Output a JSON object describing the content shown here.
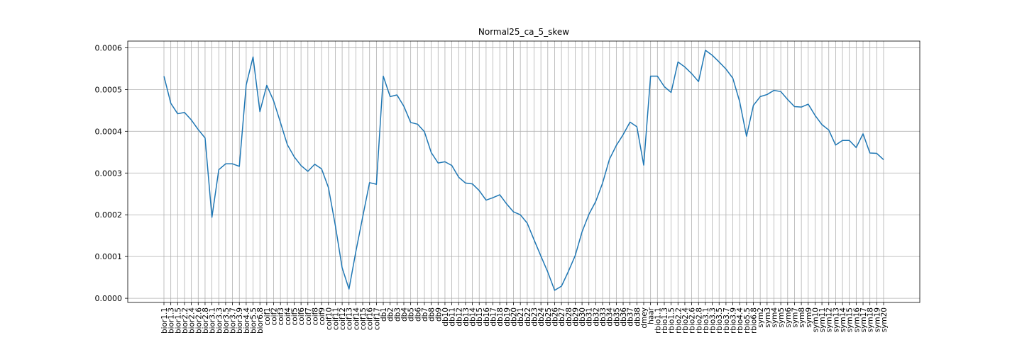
{
  "chart_data": {
    "type": "line",
    "title": "Normal25_ca_5_skew",
    "xlabel": "",
    "ylabel": "",
    "ylim": [
      -1e-05,
      0.000616
    ],
    "yticks": [
      0.0,
      0.0001,
      0.0002,
      0.0003,
      0.0004,
      0.0005,
      0.0006
    ],
    "ytick_labels": [
      "0.0000",
      "0.0001",
      "0.0002",
      "0.0003",
      "0.0004",
      "0.0005",
      "0.0006"
    ],
    "grid": true,
    "line_color": "#1f77b4",
    "categories": [
      "bior1.1",
      "bior1.3",
      "bior1.5",
      "bior2.2",
      "bior2.4",
      "bior2.6",
      "bior2.8",
      "bior3.1",
      "bior3.3",
      "bior3.5",
      "bior3.7",
      "bior3.9",
      "bior4.4",
      "bior5.5",
      "bior6.8",
      "coif1",
      "coif2",
      "coif3",
      "coif4",
      "coif5",
      "coif6",
      "coif7",
      "coif8",
      "coif9",
      "coif10",
      "coif11",
      "coif12",
      "coif13",
      "coif14",
      "coif15",
      "coif16",
      "coif17",
      "db1",
      "db2",
      "db3",
      "db4",
      "db5",
      "db6",
      "db7",
      "db8",
      "db9",
      "db10",
      "db11",
      "db12",
      "db13",
      "db14",
      "db15",
      "db16",
      "db17",
      "db18",
      "db19",
      "db20",
      "db21",
      "db22",
      "db23",
      "db24",
      "db25",
      "db26",
      "db27",
      "db28",
      "db29",
      "db30",
      "db31",
      "db32",
      "db33",
      "db34",
      "db35",
      "db36",
      "db37",
      "db38",
      "dmey",
      "haar",
      "rbio1.1",
      "rbio1.3",
      "rbio1.5",
      "rbio2.2",
      "rbio2.4",
      "rbio2.6",
      "rbio2.8",
      "rbio3.1",
      "rbio3.3",
      "rbio3.5",
      "rbio3.7",
      "rbio3.9",
      "rbio4.4",
      "rbio5.5",
      "rbio6.8",
      "sym2",
      "sym3",
      "sym4",
      "sym5",
      "sym6",
      "sym7",
      "sym8",
      "sym9",
      "sym10",
      "sym11",
      "sym12",
      "sym13",
      "sym14",
      "sym15",
      "sym16",
      "sym17",
      "sym18",
      "sym19",
      "sym20"
    ],
    "series": [
      {
        "values": [
          0.000532,
          0.000467,
          0.000442,
          0.000445,
          0.000427,
          0.000404,
          0.000384,
          0.000194,
          0.000308,
          0.000322,
          0.000322,
          0.000316,
          0.000511,
          0.000578,
          0.000447,
          0.00051,
          0.000473,
          0.000421,
          0.000368,
          0.000339,
          0.000318,
          0.000304,
          0.000321,
          0.00031,
          0.000265,
          0.000175,
          7.3e-05,
          2.2e-05,
          0.000112,
          0.000195,
          0.000277,
          0.000273,
          0.000532,
          0.000483,
          0.000487,
          0.00046,
          0.000421,
          0.000417,
          0.000399,
          0.000349,
          0.000324,
          0.000327,
          0.000318,
          0.00029,
          0.000276,
          0.000274,
          0.000258,
          0.000235,
          0.000241,
          0.000248,
          0.000226,
          0.000207,
          0.0002,
          0.00018,
          0.00014,
          0.000101,
          6.3e-05,
          1.9e-05,
          2.9e-05,
          6.4e-05,
          0.000102,
          0.000159,
          0.000201,
          0.000232,
          0.000276,
          0.000333,
          0.000366,
          0.000392,
          0.000422,
          0.000411,
          0.000319,
          0.000532,
          0.000532,
          0.000507,
          0.000493,
          0.000566,
          0.000554,
          0.000538,
          0.000519,
          0.000594,
          0.000582,
          0.000566,
          0.000549,
          0.000527,
          0.000471,
          0.000388,
          0.000462,
          0.000483,
          0.000488,
          0.000498,
          0.000495,
          0.000476,
          0.000459,
          0.000458,
          0.000465,
          0.000438,
          0.000416,
          0.000403,
          0.000367,
          0.000378,
          0.000378,
          0.000361,
          0.000394,
          0.000348,
          0.000347,
          0.000332
        ]
      }
    ]
  }
}
